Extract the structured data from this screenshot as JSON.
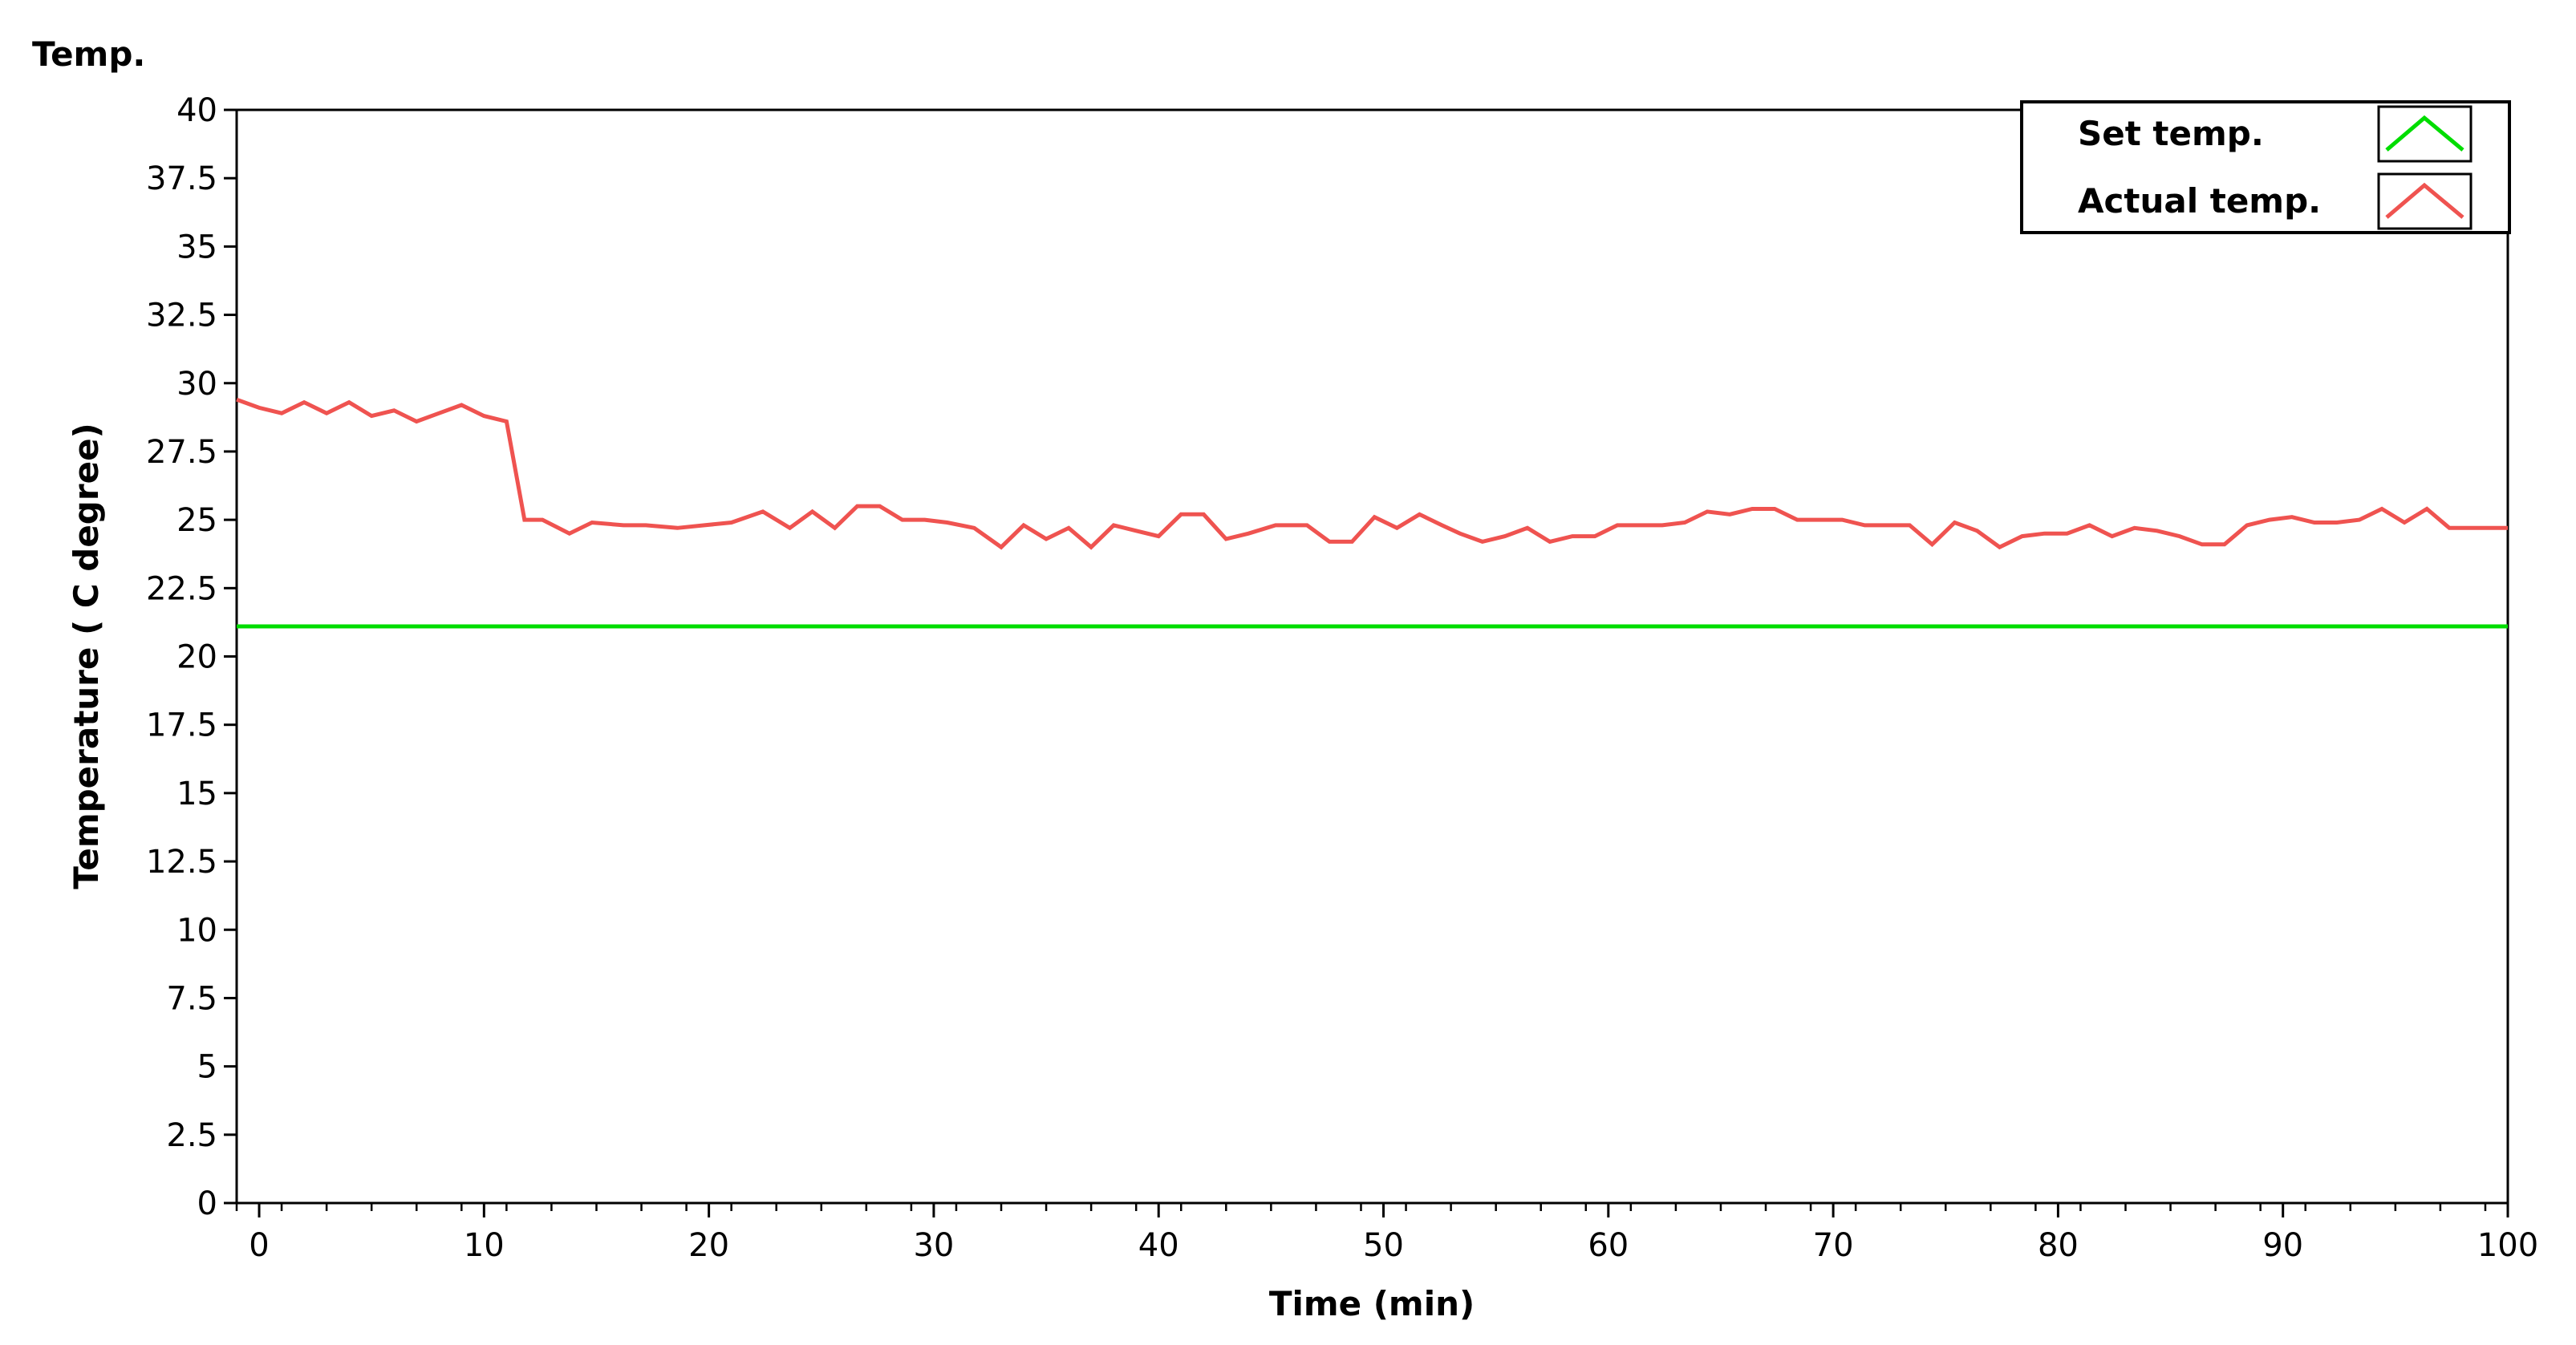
{
  "chart_data": {
    "type": "line",
    "title": "Temp.",
    "xlabel": "Time (min)",
    "ylabel": "Temperature ( C degree)",
    "xlim": [
      -1,
      100
    ],
    "ylim": [
      0,
      40
    ],
    "x_ticks": [
      0,
      10,
      20,
      30,
      40,
      50,
      60,
      70,
      80,
      90,
      100
    ],
    "y_ticks": [
      "0",
      "2.5",
      "5",
      "7.5",
      "10",
      "12.5",
      "15",
      "17.5",
      "20",
      "22.5",
      "25",
      "27.5",
      "30",
      "32.5",
      "35",
      "37.5",
      "40"
    ],
    "grid": false,
    "legend_position": "top-right",
    "series": [
      {
        "name": "Set temp.",
        "color": "#00dd00",
        "x": [
          -1,
          100
        ],
        "y": [
          21.1,
          21.1
        ]
      },
      {
        "name": "Actual temp.",
        "color": "#ef5350",
        "x": [
          -1,
          0,
          1,
          2,
          3,
          4,
          5,
          6,
          7,
          8,
          9,
          10,
          11,
          11.8,
          12.6,
          13.8,
          14.8,
          16.2,
          17.2,
          18.6,
          19.8,
          21,
          22.4,
          23.6,
          24.6,
          25.6,
          26.6,
          27.6,
          28.6,
          29.6,
          30.6,
          31.8,
          33,
          34,
          35,
          36,
          37,
          38,
          39,
          40,
          41,
          42,
          43,
          44,
          45.2,
          46.6,
          47.6,
          48.6,
          49.6,
          50.6,
          51.6,
          52.6,
          53.4,
          54.4,
          55.4,
          56.4,
          57.4,
          58.4,
          59.4,
          60.4,
          61.4,
          62.4,
          63.4,
          64.4,
          65.4,
          66.4,
          67.4,
          68.4,
          69.4,
          70.4,
          71.4,
          72.4,
          73.4,
          74.4,
          75.4,
          76.4,
          77.4,
          78.4,
          79.4,
          80.4,
          81.4,
          82.4,
          83.4,
          84.4,
          85.4,
          86.4,
          87.4,
          88.4,
          89.4,
          90.4,
          91.4,
          92.4,
          93.4,
          94.4,
          95.4,
          96.4,
          97.4,
          98.4,
          99.4,
          100
        ],
        "y": [
          29.4,
          29.1,
          28.9,
          29.3,
          28.9,
          29.3,
          28.8,
          29.0,
          28.6,
          28.9,
          29.2,
          28.8,
          28.6,
          25.0,
          25.0,
          24.5,
          24.9,
          24.8,
          24.8,
          24.7,
          24.8,
          24.9,
          25.3,
          24.7,
          25.3,
          24.7,
          25.5,
          25.5,
          25.0,
          25.0,
          24.9,
          24.7,
          24.0,
          24.8,
          24.3,
          24.7,
          24.0,
          24.8,
          24.6,
          24.4,
          25.2,
          25.2,
          24.3,
          24.5,
          24.8,
          24.8,
          24.2,
          24.2,
          25.1,
          24.7,
          25.2,
          24.8,
          24.5,
          24.2,
          24.4,
          24.7,
          24.2,
          24.4,
          24.4,
          24.8,
          24.8,
          24.8,
          24.9,
          25.3,
          25.2,
          25.4,
          25.4,
          25.0,
          25.0,
          25.0,
          24.8,
          24.8,
          24.8,
          24.1,
          24.9,
          24.6,
          24.0,
          24.4,
          24.5,
          24.5,
          24.8,
          24.4,
          24.7,
          24.6,
          24.4,
          24.1,
          24.1,
          24.8,
          25.0,
          25.1,
          24.9,
          24.9,
          25.0,
          25.4,
          24.9,
          25.4,
          24.7,
          24.7,
          24.7,
          24.7
        ]
      }
    ]
  }
}
